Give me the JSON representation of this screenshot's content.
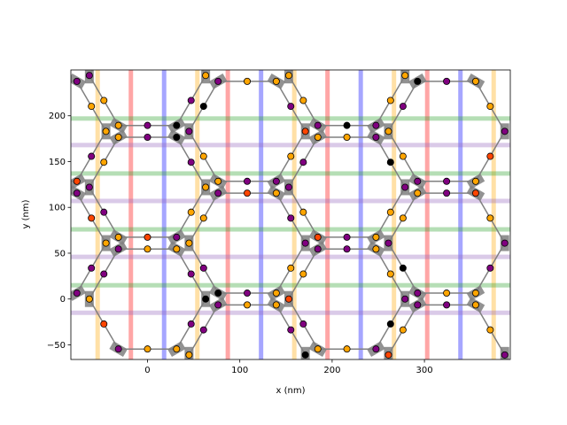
{
  "chart_data": {
    "type": "scatter",
    "title": "",
    "xlabel": "x (nm)",
    "ylabel": "y (nm)",
    "xlim": [
      -83,
      393
    ],
    "ylim": [
      -66,
      250
    ],
    "xticks": [
      0,
      100,
      200,
      300
    ],
    "yticks": [
      -50,
      0,
      50,
      100,
      150,
      200
    ],
    "grid": false,
    "legend": "none",
    "colors": {
      "green_band": "#2ca02c",
      "purple_band": "#9467bd",
      "orange_band": "#ffa500",
      "red_band": "#ff0000",
      "blue_band": "#0000ff",
      "edge": "#808080",
      "bar": "#7f7f7f",
      "black_node": "#000000",
      "purple_node": "#800080",
      "orange_node": "#ffa500",
      "red_node": "#ff4500",
      "olive_node": "#9acd32"
    },
    "lattice": {
      "spacing": 31.5,
      "period_x": 216,
      "period_y": 122,
      "hexagon_centers": [
        [
          0,
          0
        ],
        [
          216,
          0
        ],
        [
          0,
          244
        ],
        [
          216,
          244
        ],
        [
          108,
          61
        ],
        [
          324,
          61
        ],
        [
          -108,
          61
        ],
        [
          108,
          183
        ],
        [
          324,
          183
        ],
        [
          -108,
          183
        ],
        [
          0,
          122
        ],
        [
          216,
          122
        ],
        [
          108,
          -61
        ],
        [
          324,
          -61
        ]
      ]
    },
    "bands": {
      "horizontal": [
        {
          "y": 197,
          "color": "green"
        },
        {
          "y": 168,
          "color": "purple"
        },
        {
          "y": 137,
          "color": "green"
        },
        {
          "y": 107,
          "color": "purple"
        },
        {
          "y": 76,
          "color": "green"
        },
        {
          "y": 46,
          "color": "purple"
        },
        {
          "y": 15,
          "color": "green"
        },
        {
          "y": -15,
          "color": "purple"
        }
      ],
      "vertical": [
        {
          "x": -54,
          "color": "orange"
        },
        {
          "x": -18,
          "color": "red"
        },
        {
          "x": 18,
          "color": "blue"
        },
        {
          "x": 54,
          "color": "orange"
        },
        {
          "x": 87,
          "color": "red"
        },
        {
          "x": 123,
          "color": "blue"
        },
        {
          "x": 159,
          "color": "orange"
        },
        {
          "x": 195,
          "color": "red"
        },
        {
          "x": 231,
          "color": "blue"
        },
        {
          "x": 267,
          "color": "orange"
        },
        {
          "x": 303,
          "color": "red"
        },
        {
          "x": 339,
          "color": "blue"
        },
        {
          "x": 375,
          "color": "orange"
        }
      ]
    }
  }
}
